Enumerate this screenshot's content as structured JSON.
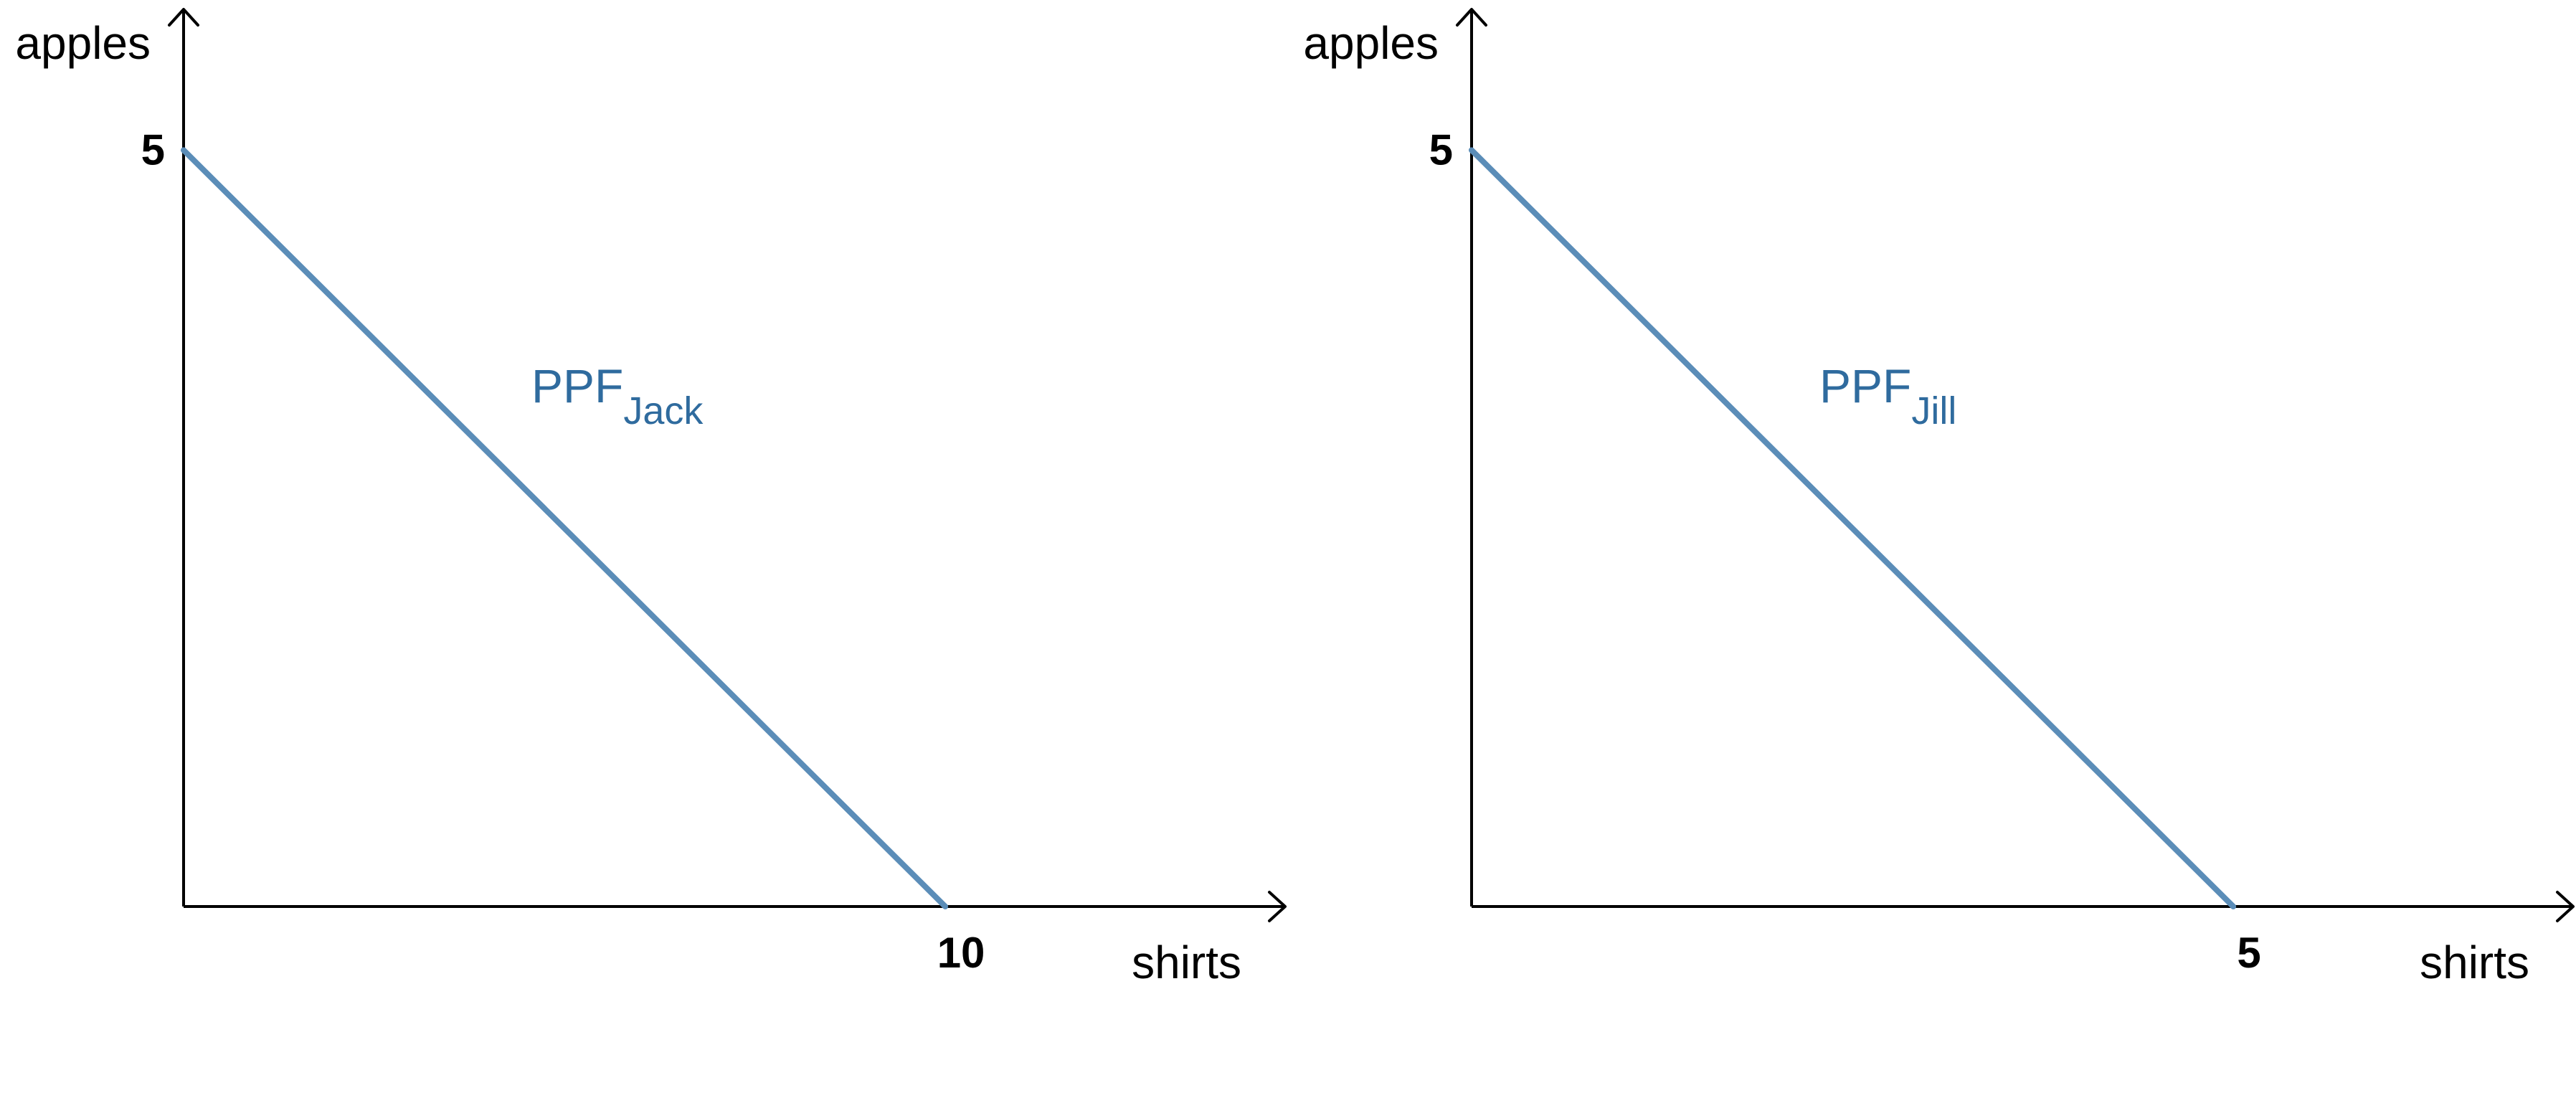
{
  "colors": {
    "ppf_line": "#5b8db8",
    "ppf_label": "#2f6b9e",
    "axis": "#000000"
  },
  "chart_data": [
    {
      "type": "line",
      "title": "",
      "xlabel": "shirts",
      "ylabel": "apples",
      "xlim": [
        0,
        14.5
      ],
      "ylim": [
        0,
        5.95
      ],
      "grid": false,
      "x_ticks": [
        {
          "value": 10,
          "label": "10"
        }
      ],
      "y_ticks": [
        {
          "value": 5,
          "label": "5"
        }
      ],
      "series": [
        {
          "label_main": "PPF",
          "label_sub": "Jack",
          "points": [
            [
              0,
              5
            ],
            [
              10,
              0
            ]
          ]
        }
      ]
    },
    {
      "type": "line",
      "title": "",
      "xlabel": "shirts",
      "ylabel": "apples",
      "xlim": [
        0,
        7.25
      ],
      "ylim": [
        0,
        5.95
      ],
      "grid": false,
      "x_ticks": [
        {
          "value": 5,
          "label": "5"
        }
      ],
      "y_ticks": [
        {
          "value": 5,
          "label": "5"
        }
      ],
      "series": [
        {
          "label_main": "PPF",
          "label_sub": "Jill",
          "points": [
            [
              0,
              5
            ],
            [
              5,
              0
            ]
          ]
        }
      ]
    }
  ]
}
